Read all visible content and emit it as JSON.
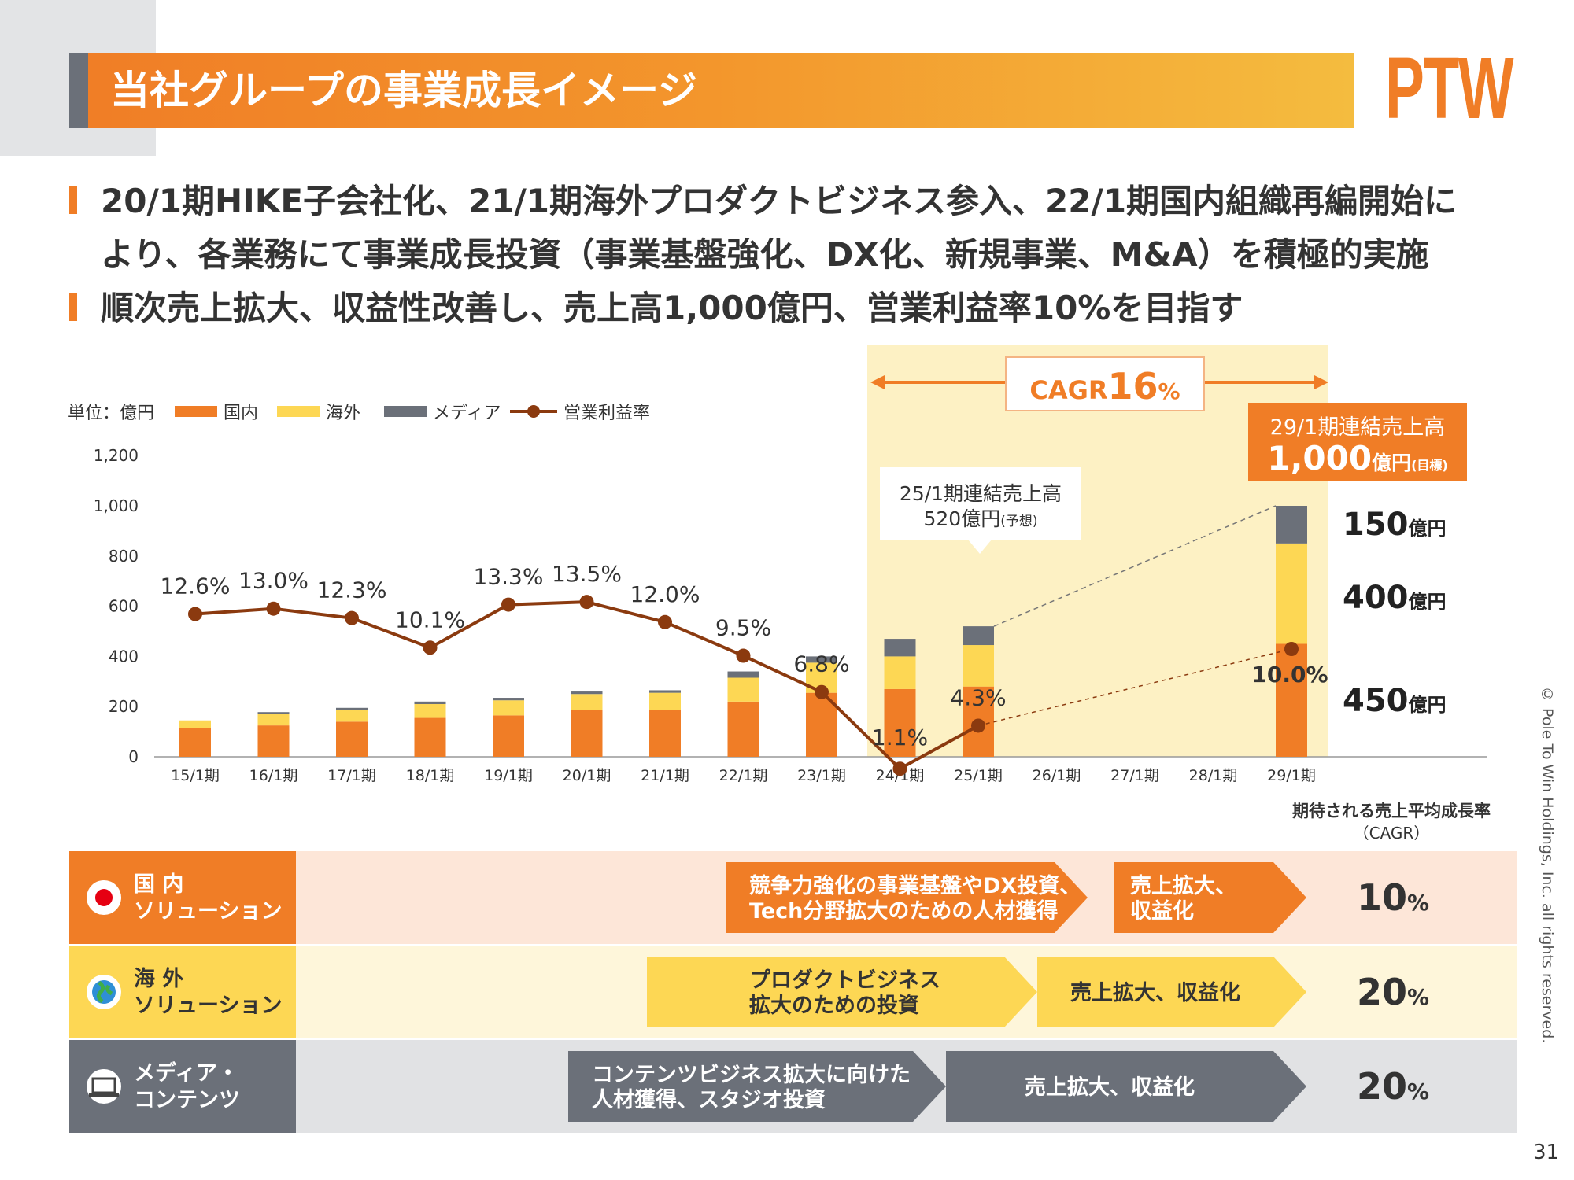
{
  "page": {
    "title": "当社グループの事業成長イメージ",
    "logo": "PTW",
    "bullets": [
      "20/1期HIKE子会社化、21/1期海外プロダクトビジネス参入、22/1期国内組織再編開始に",
      "より、各業務にて事業成長投資（事業基盤強化、DX化、新規事業、M&A）を積極的実施",
      "順次売上拡大、収益性改善し、売上高1,000億円、営業利益率10%を目指す"
    ],
    "copyright": "© Pole To Win Holdings, Inc. all rights reserved.",
    "page_number": "31"
  },
  "colors": {
    "domestic": "#f07d26",
    "overseas": "#fdd754",
    "media": "#6b7079",
    "op_margin": "#8b3a0f",
    "highlight": "#fdf1c4",
    "row_domestic": "#fde6d8",
    "row_overseas": "#fef6da",
    "row_media": "#e1e2e4"
  },
  "chart_data": {
    "type": "bar",
    "unit_label": "単位：億円",
    "legend": [
      "国内",
      "海外",
      "メディア",
      "営業利益率"
    ],
    "legend_position": "top-left",
    "categories": [
      "15/1期",
      "16/1期",
      "17/1期",
      "18/1期",
      "19/1期",
      "20/1期",
      "21/1期",
      "22/1期",
      "23/1期",
      "24/1期",
      "25/1期",
      "26/1期",
      "27/1期",
      "28/1期",
      "29/1期"
    ],
    "ylim": [
      0,
      1200
    ],
    "yticks": [
      "0",
      "200",
      "400",
      "600",
      "800",
      "1,000",
      "1,200"
    ],
    "stacked": true,
    "series": [
      {
        "name": "国内",
        "values": [
          115,
          125,
          140,
          155,
          165,
          185,
          185,
          220,
          255,
          270,
          280,
          null,
          null,
          null,
          450
        ]
      },
      {
        "name": "海外",
        "values": [
          30,
          45,
          45,
          55,
          60,
          65,
          70,
          95,
          120,
          130,
          165,
          null,
          null,
          null,
          400
        ]
      },
      {
        "name": "メディア",
        "values": [
          0,
          8,
          10,
          10,
          10,
          10,
          10,
          25,
          25,
          70,
          75,
          null,
          null,
          null,
          150
        ]
      }
    ],
    "line_series": {
      "name": "営業利益率",
      "values": [
        12.6,
        13.0,
        12.3,
        10.1,
        13.3,
        13.5,
        12.0,
        9.5,
        6.8,
        1.1,
        4.3,
        null,
        null,
        null,
        10.0
      ],
      "labels": [
        "12.6%",
        "13.0%",
        "12.3%",
        "10.1%",
        "13.3%",
        "13.5%",
        "12.0%",
        "9.5%",
        "6.8%",
        "1.1%",
        "4.3%",
        "",
        "",
        "",
        "10.0%"
      ]
    },
    "segment_labels": [
      {
        "value": "150",
        "unit": "億円"
      },
      {
        "value": "400",
        "unit": "億円"
      },
      {
        "value": "450",
        "unit": "億円"
      }
    ],
    "cagr_box": {
      "prefix": "CAGR",
      "value": "16",
      "suffix": "%"
    },
    "callout_25": {
      "line1": "25/1期連結売上高",
      "line2": "520億円",
      "note": "(予想)"
    },
    "callout_29": {
      "line1": "29/1期連結売上高",
      "value": "1,000",
      "unit": "億円",
      "note": "(目標)"
    }
  },
  "roadmap": {
    "cagr_header": [
      "期待される売上平均成長率",
      "（CAGR）"
    ],
    "rows": [
      {
        "name1": "国 内",
        "name2": "ソリューション",
        "icon": "japan-flag-icon",
        "steps": [
          [
            "競争力強化の事業基盤やDX投資、",
            "Tech分野拡大のための人材獲得"
          ],
          [
            "売上拡大、",
            "収益化"
          ]
        ],
        "cagr": "10",
        "pct": "%"
      },
      {
        "name1": "海 外",
        "name2": "ソリューション",
        "icon": "globe-icon",
        "steps": [
          [
            "プロダクトビジネス",
            "拡大のための投資"
          ],
          [
            "売上拡大、収益化"
          ]
        ],
        "cagr": "20",
        "pct": "%"
      },
      {
        "name1": "メディア・",
        "name2": "コンテンツ",
        "icon": "monitor-icon",
        "steps": [
          [
            "コンテンツビジネス拡大に向けた",
            "人材獲得、スタジオ投資"
          ],
          [
            "売上拡大、収益化"
          ]
        ],
        "cagr": "20",
        "pct": "%"
      }
    ]
  }
}
